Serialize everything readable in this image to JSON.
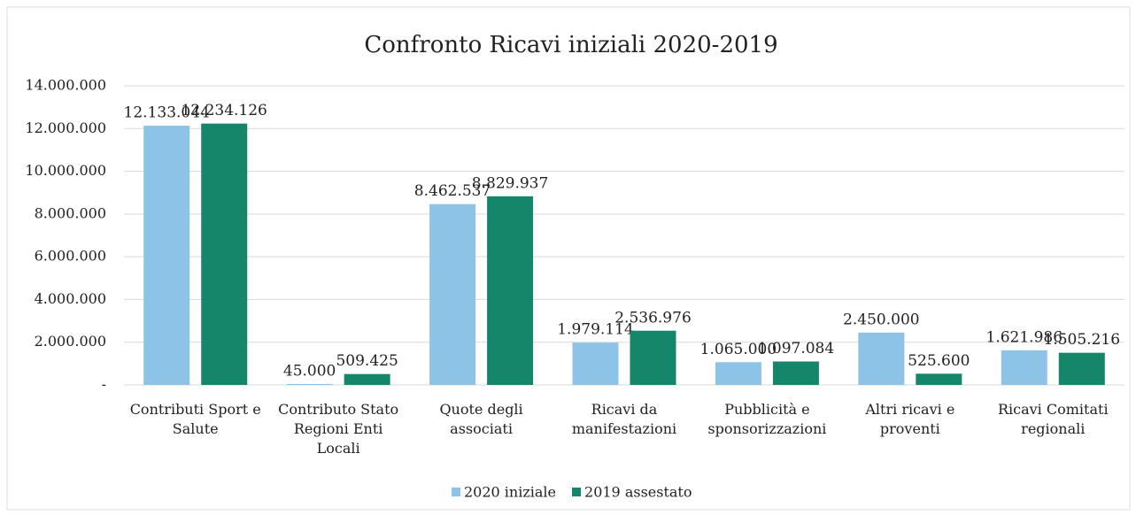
{
  "chart_data": {
    "type": "bar",
    "title": "Confronto Ricavi iniziali 2020-2019",
    "categories": [
      "Contributi Sport e Salute",
      "Contributo Stato Regioni Enti Locali",
      "Quote degli associati",
      "Ricavi da manifestazioni",
      "Pubblicità e sponsorizzazioni",
      "Altri ricavi e proventi",
      "Ricavi Comitati regionali"
    ],
    "series": [
      {
        "name": "2020 iniziale",
        "color": "#8dc3e6",
        "values": [
          12133044,
          45000,
          8462537,
          1979114,
          1065000,
          2450000,
          1621986
        ],
        "value_labels": [
          "12.133.044",
          "45.000",
          "8.462.537",
          "1.979.114",
          "1.065.000",
          "2.450.000",
          "1.621.986"
        ]
      },
      {
        "name": "2019 assestato",
        "color": "#16866a",
        "values": [
          12234126,
          509425,
          8829937,
          2536976,
          1097084,
          525600,
          1505216
        ],
        "value_labels": [
          "12.234.126",
          "509.425",
          "8.829.937",
          "2.536.976",
          "1.097.084",
          "525.600",
          "1.505.216"
        ]
      }
    ],
    "ylim": [
      0,
      14000000
    ],
    "yticks": [
      {
        "value": 0,
        "label": "-"
      },
      {
        "value": 2000000,
        "label": "2.000.000"
      },
      {
        "value": 4000000,
        "label": "4.000.000"
      },
      {
        "value": 6000000,
        "label": "6.000.000"
      },
      {
        "value": 8000000,
        "label": "8.000.000"
      },
      {
        "value": 10000000,
        "label": "10.000.000"
      },
      {
        "value": 12000000,
        "label": "12.000.000"
      },
      {
        "value": 14000000,
        "label": "14.000.000"
      }
    ],
    "grid": true,
    "legend": "bottom"
  }
}
